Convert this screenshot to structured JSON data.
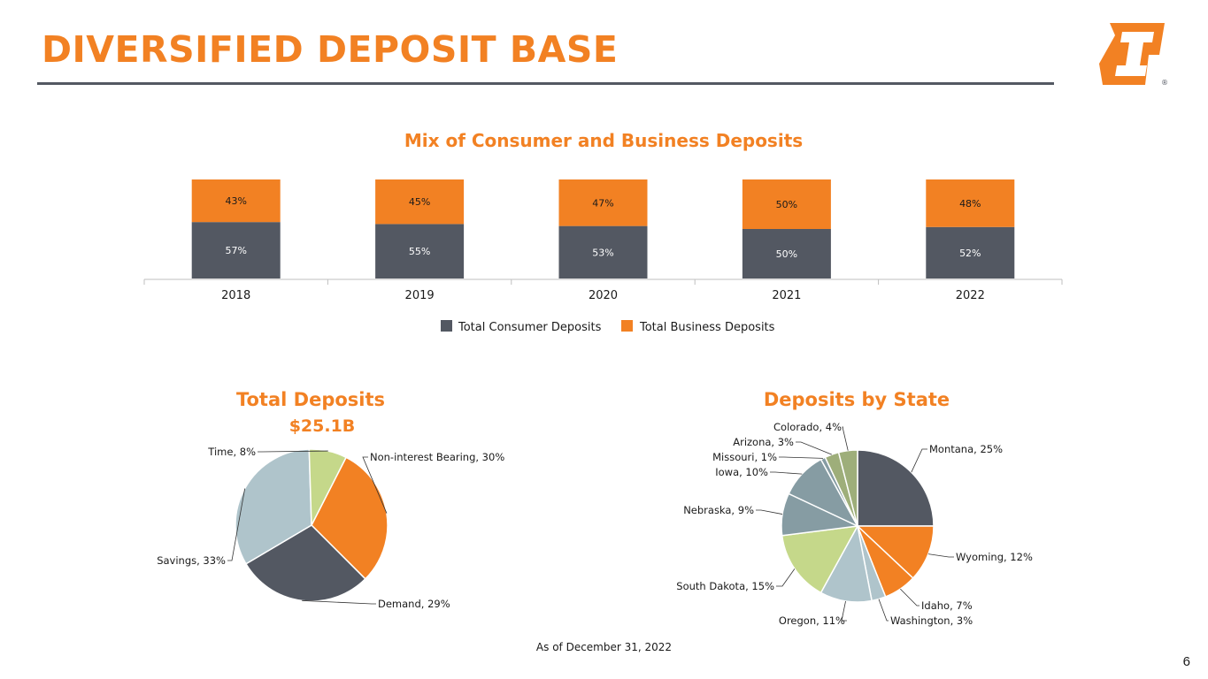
{
  "slide": {
    "title": "DIVERSIFIED DEPOSIT BASE",
    "page_number": "6",
    "footnote": "As of December 31, 2022",
    "logo_registered": "®"
  },
  "colors": {
    "accent": "#F28123",
    "dark": "#535862",
    "rule": "#535862"
  },
  "chart_data": [
    {
      "type": "bar",
      "stacked": true,
      "title": "Mix of Consumer and Business Deposits",
      "categories": [
        "2018",
        "2019",
        "2020",
        "2021",
        "2022"
      ],
      "series": [
        {
          "name": "Total Consumer Deposits",
          "color": "#535862",
          "values": [
            57,
            55,
            53,
            50,
            52
          ],
          "labels": [
            "57%",
            "55%",
            "53%",
            "50%",
            "52%"
          ]
        },
        {
          "name": "Total Business Deposits",
          "color": "#F28123",
          "values": [
            43,
            45,
            47,
            50,
            48
          ],
          "labels": [
            "43%",
            "45%",
            "47%",
            "50%",
            "48%"
          ]
        }
      ],
      "ylim": [
        0,
        100
      ],
      "legend": "bottom"
    },
    {
      "type": "pie",
      "title": "Total Deposits",
      "subtitle": "$25.1B",
      "slices": [
        {
          "label": "Non-interest Bearing, 30%",
          "value": 30,
          "color": "#F28123"
        },
        {
          "label": "Demand, 29%",
          "value": 29,
          "color": "#535862"
        },
        {
          "label": "Savings, 33%",
          "value": 33,
          "color": "#AFC4CB"
        },
        {
          "label": "Time, 8%",
          "value": 8,
          "color": "#C5D88A"
        }
      ]
    },
    {
      "type": "pie",
      "title": "Deposits by State",
      "slices": [
        {
          "label": "Montana, 25%",
          "value": 25,
          "color": "#535862"
        },
        {
          "label": "Wyoming, 12%",
          "value": 12,
          "color": "#F28123"
        },
        {
          "label": "Idaho, 7%",
          "value": 7,
          "color": "#F28123"
        },
        {
          "label": "Washington, 3%",
          "value": 3,
          "color": "#AFC4CB"
        },
        {
          "label": "Oregon, 11%",
          "value": 11,
          "color": "#AFC4CB"
        },
        {
          "label": "South Dakota, 15%",
          "value": 15,
          "color": "#C5D88A"
        },
        {
          "label": "Nebraska, 9%",
          "value": 9,
          "color": "#869CA3"
        },
        {
          "label": "Iowa, 10%",
          "value": 10,
          "color": "#869CA3"
        },
        {
          "label": "Missouri, 1%",
          "value": 1,
          "color": "#869CA3"
        },
        {
          "label": "Arizona, 3%",
          "value": 3,
          "color": "#9EAE7A"
        },
        {
          "label": "Colorado, 4%",
          "value": 4,
          "color": "#9EAE7A"
        }
      ]
    }
  ]
}
